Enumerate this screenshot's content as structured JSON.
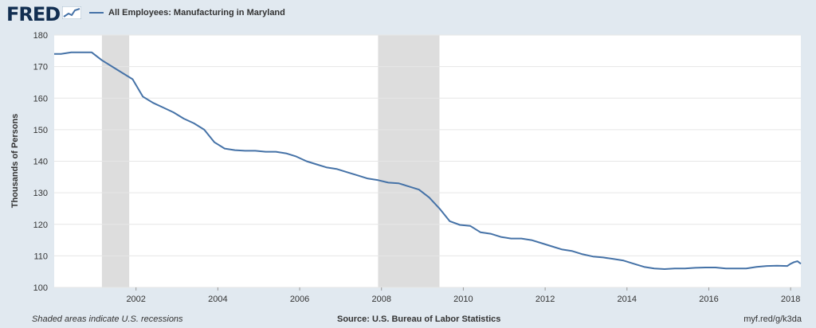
{
  "brand": {
    "logo_text": "FRED"
  },
  "legend": {
    "label": "All Employees: Manufacturing in Maryland",
    "color": "#4572a7"
  },
  "footer": {
    "note": "Shaded areas indicate U.S. recessions",
    "source": "Source: U.S. Bureau of Labor Statistics",
    "link": "myf.red/g/k3da"
  },
  "chart_data": {
    "type": "line",
    "title": "",
    "xlabel": "",
    "ylabel": "Thousands of Persons",
    "ylim": [
      100,
      180
    ],
    "xlim": [
      "2000-01",
      "2018-04"
    ],
    "yticks": [
      "100",
      "110",
      "120",
      "130",
      "140",
      "150",
      "160",
      "170",
      "180"
    ],
    "xticks": [
      "2002",
      "2004",
      "2006",
      "2008",
      "2010",
      "2012",
      "2014",
      "2016",
      "2018"
    ],
    "grid": "horizontal",
    "line_color": "#4572a7",
    "recession_color": "#dddddd",
    "recessions": [
      {
        "start": "2001-03",
        "end": "2001-11"
      },
      {
        "start": "2007-12",
        "end": "2009-06"
      }
    ],
    "series": [
      {
        "name": "All Employees: Manufacturing in Maryland",
        "x": [
          "2000-01",
          "2000-03",
          "2000-06",
          "2000-09",
          "2000-12",
          "2001-03",
          "2001-06",
          "2001-09",
          "2001-12",
          "2002-03",
          "2002-06",
          "2002-09",
          "2002-12",
          "2003-03",
          "2003-06",
          "2003-09",
          "2003-12",
          "2004-03",
          "2004-06",
          "2004-09",
          "2004-12",
          "2005-03",
          "2005-06",
          "2005-09",
          "2005-12",
          "2006-03",
          "2006-06",
          "2006-09",
          "2006-12",
          "2007-03",
          "2007-06",
          "2007-09",
          "2007-12",
          "2008-03",
          "2008-06",
          "2008-09",
          "2008-12",
          "2009-03",
          "2009-06",
          "2009-09",
          "2009-12",
          "2010-03",
          "2010-06",
          "2010-09",
          "2010-12",
          "2011-03",
          "2011-06",
          "2011-09",
          "2011-12",
          "2012-03",
          "2012-06",
          "2012-09",
          "2012-12",
          "2013-03",
          "2013-06",
          "2013-09",
          "2013-12",
          "2014-03",
          "2014-06",
          "2014-09",
          "2014-12",
          "2015-03",
          "2015-06",
          "2015-09",
          "2015-12",
          "2016-03",
          "2016-06",
          "2016-09",
          "2016-12",
          "2017-03",
          "2017-06",
          "2017-09",
          "2017-12",
          "2018-01",
          "2018-02",
          "2018-03",
          "2018-04"
        ],
        "values": [
          174,
          174,
          174.5,
          174.5,
          174.5,
          172,
          170,
          168,
          166,
          160.5,
          158.5,
          157,
          155.5,
          153.5,
          152,
          150,
          146,
          144,
          143.5,
          143.3,
          143.3,
          143,
          143,
          142.5,
          141.5,
          140,
          139,
          138,
          137.5,
          136.5,
          135.5,
          134.5,
          134,
          133.2,
          133,
          132,
          131,
          128.5,
          125,
          121,
          119.8,
          119.5,
          117.5,
          117,
          116,
          115.5,
          115.5,
          115,
          114,
          113,
          112,
          111.5,
          110.5,
          109.8,
          109.5,
          109,
          108.5,
          107.5,
          106.5,
          106,
          105.8,
          106,
          106,
          106.2,
          106.3,
          106.3,
          106,
          106,
          106,
          106.5,
          106.8,
          106.9,
          106.8,
          107.5,
          108,
          108.3,
          107.5
        ]
      }
    ]
  }
}
